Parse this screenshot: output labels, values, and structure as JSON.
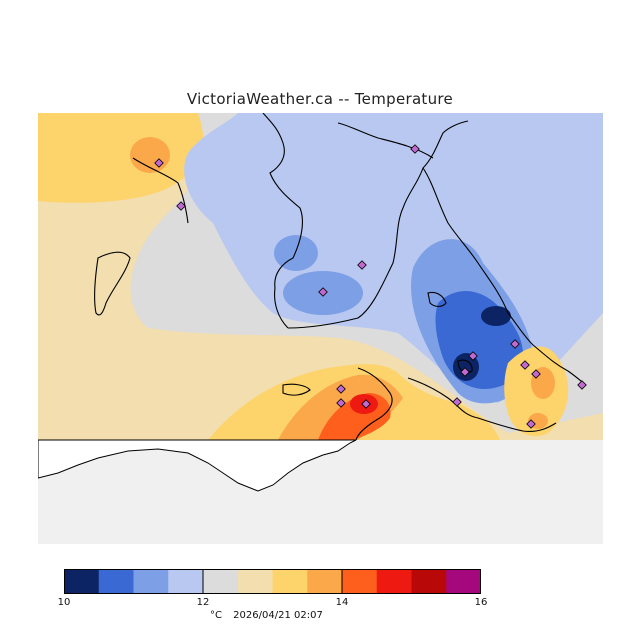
{
  "title": "VictoriaWeather.ca -- Temperature",
  "colors": {
    "background": "#f0f0f0",
    "land_white": "#ffffff",
    "coast": "#000000",
    "station": "#c06ad0"
  },
  "legend": {
    "colors": [
      "#0d2464",
      "#3a69d4",
      "#7d9fe6",
      "#b9c8f0",
      "#dcdcdc",
      "#f2deae",
      "#fdd46c",
      "#fba84a",
      "#fe5f1c",
      "#ee1a12",
      "#b80808",
      "#a4087c"
    ],
    "ticks": [
      {
        "label": "10",
        "index": 0
      },
      {
        "label": "12",
        "index": 4
      },
      {
        "label": "14",
        "index": 8
      },
      {
        "label": "16",
        "index": 12
      }
    ]
  },
  "footer": {
    "unit": "°C",
    "timestamp": "2026/04/21 02:07"
  }
}
